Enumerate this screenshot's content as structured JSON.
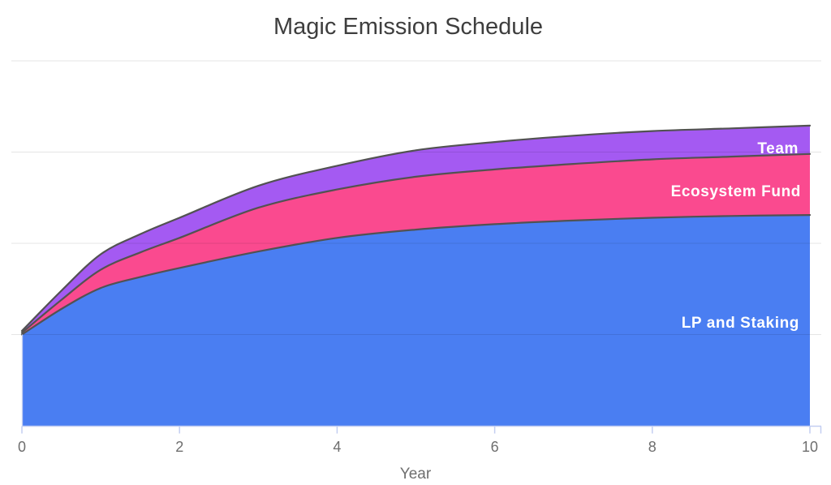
{
  "title": "Magic Emission Schedule",
  "chart_data": {
    "type": "area",
    "stacked": true,
    "title": "Magic Emission Schedule",
    "xlabel": "Year",
    "ylabel": "",
    "xlim": [
      0,
      10
    ],
    "ylim": [
      0,
      4
    ],
    "grid": true,
    "grid_values": [
      1,
      2,
      3,
      4
    ],
    "x_ticks": [
      0,
      2,
      4,
      6,
      8,
      10
    ],
    "x_tick_labels": [
      "0",
      "2",
      "4",
      "6",
      "8",
      "10"
    ],
    "x": [
      0,
      0.5,
      1,
      1.5,
      2,
      3,
      4,
      5,
      6,
      7,
      8,
      9,
      10
    ],
    "series": [
      {
        "name": "LP and Staking",
        "color": "#4a7ef2",
        "values": [
          1.0,
          1.28,
          1.51,
          1.63,
          1.73,
          1.91,
          2.06,
          2.15,
          2.21,
          2.25,
          2.28,
          2.3,
          2.31
        ]
      },
      {
        "name": "Ecosystem Fund",
        "color": "#fa4a8f",
        "values": [
          0.02,
          0.1,
          0.2,
          0.27,
          0.33,
          0.48,
          0.53,
          0.58,
          0.6,
          0.62,
          0.64,
          0.65,
          0.67
        ]
      },
      {
        "name": "Team",
        "color": "#a45af2",
        "values": [
          0.02,
          0.1,
          0.17,
          0.2,
          0.22,
          0.24,
          0.26,
          0.29,
          0.3,
          0.31,
          0.31,
          0.31,
          0.31
        ]
      }
    ],
    "series_label_color": "#ffffff",
    "edge_stroke_color": "#525252",
    "legend_position": "labels-on-areas-right"
  },
  "style": {
    "title_color": "#3e3e3e",
    "gridline_color": "rgba(0,0,0,0.10)",
    "axis_line_color": "#c3cef1",
    "tick_color": "#c3cef1",
    "tick_label_color": "#6e6e6e",
    "axis_title_color": "#6f6f6f",
    "background": "#ffffff"
  }
}
